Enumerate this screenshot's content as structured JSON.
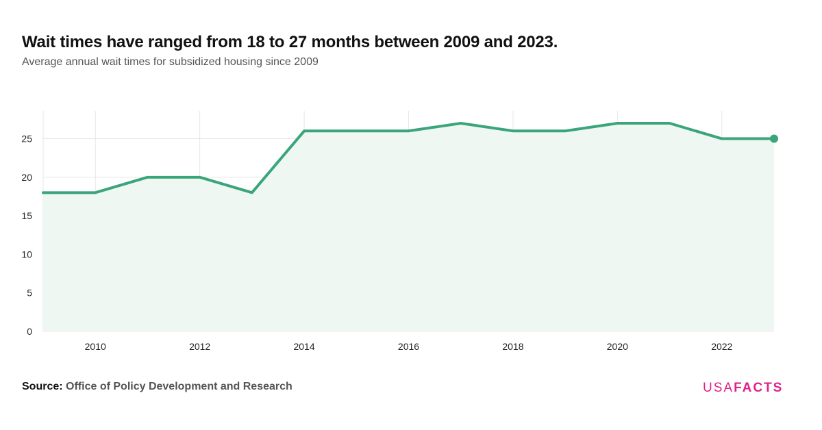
{
  "title": "Wait times have ranged from 18 to 27 months between 2009 and 2023.",
  "subtitle": "Average annual wait times for subsidized housing since 2009",
  "source": {
    "label": "Source:",
    "value": "Office of Policy Development and Research"
  },
  "brand": {
    "part1": "USA",
    "part2": "FACTS",
    "color": "#e0218a"
  },
  "colors": {
    "line": "#3aa57a",
    "area": "#eef7f2",
    "grid": "#e6e6e6",
    "tick_text": "#222222"
  },
  "chart_data": {
    "type": "area",
    "title": "Wait times have ranged from 18 to 27 months between 2009 and 2023.",
    "subtitle": "Average annual wait times for subsidized housing since 2009",
    "xlabel": "",
    "ylabel": "",
    "x": [
      2009,
      2010,
      2011,
      2012,
      2013,
      2014,
      2015,
      2016,
      2017,
      2018,
      2019,
      2020,
      2021,
      2022,
      2023
    ],
    "series": [
      {
        "values": [
          18,
          18,
          20,
          20,
          18,
          26,
          26,
          26,
          27,
          26,
          26,
          27,
          27,
          25,
          25
        ]
      }
    ],
    "xlim": [
      2009,
      2023
    ],
    "ylim": [
      0,
      28.6
    ],
    "x_ticks": [
      2010,
      2012,
      2014,
      2016,
      2018,
      2020,
      2022
    ],
    "y_ticks": [
      0,
      5,
      10,
      15,
      20,
      25
    ],
    "grid": true,
    "legend": "none",
    "last_point_marker": true
  }
}
